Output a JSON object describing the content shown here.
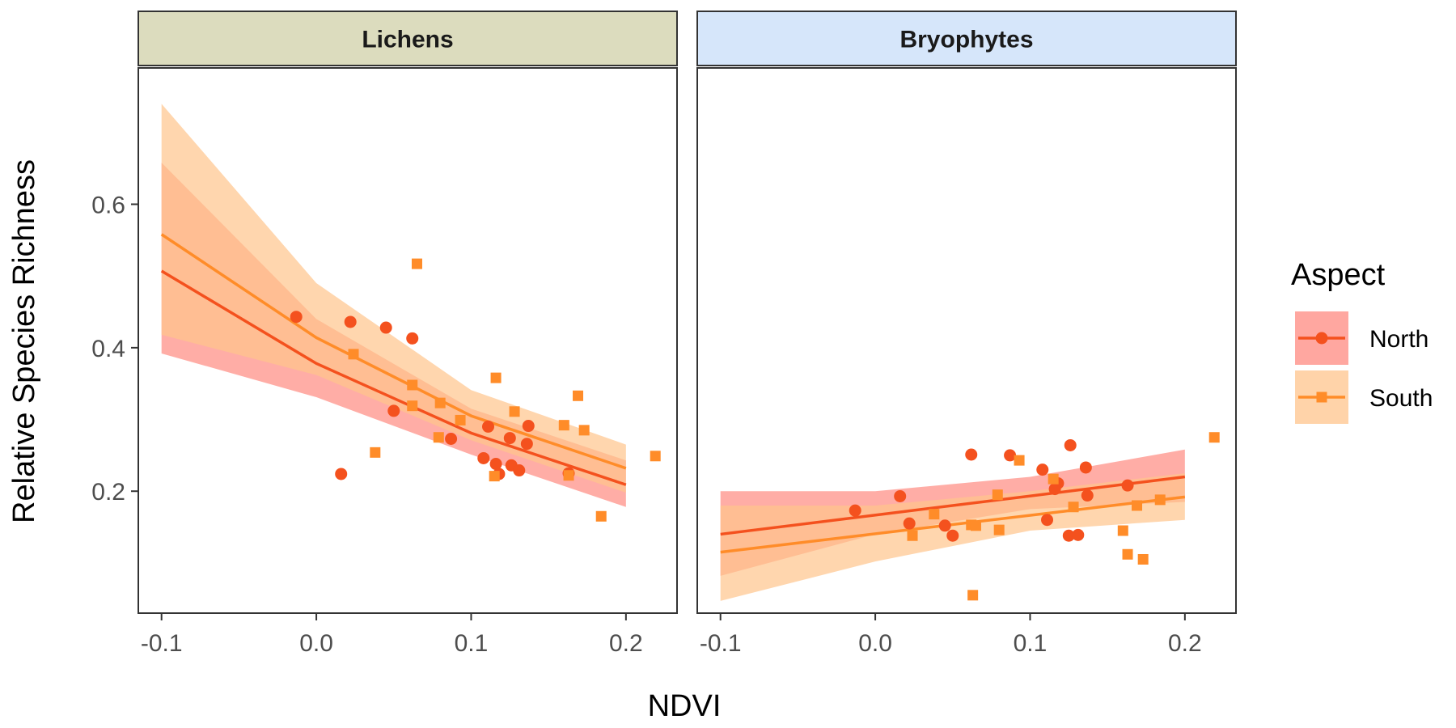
{
  "chart_data": {
    "type": "scatter",
    "xlabel": "NDVI",
    "ylabel": "Relative Species Richness",
    "xlim": [
      -0.115,
      0.233
    ],
    "ylim": [
      0.03,
      0.79
    ],
    "x_ticks": [
      -0.1,
      0.0,
      0.1,
      0.2
    ],
    "x_tick_labels": [
      "-0.1",
      "0.0",
      "0.1",
      "0.2"
    ],
    "y_ticks": [
      0.2,
      0.4,
      0.6
    ],
    "y_tick_labels": [
      "0.2",
      "0.4",
      "0.6"
    ],
    "grid": false,
    "legend": {
      "title": "Aspect",
      "position": "right",
      "entries": [
        {
          "name": "North",
          "line_color": "#F4511E",
          "band_color": "#FF8A80",
          "marker": "circle"
        },
        {
          "name": "South",
          "line_color": "#FF8C29",
          "band_color": "#FFC48C",
          "marker": "square"
        }
      ]
    },
    "panels": [
      {
        "title": "Lichens",
        "strip_color": "#DCDCBE",
        "series": [
          {
            "name": "North",
            "points": [
              [
                -0.013,
                0.443
              ],
              [
                0.016,
                0.224
              ],
              [
                0.022,
                0.436
              ],
              [
                0.045,
                0.428
              ],
              [
                0.05,
                0.312
              ],
              [
                0.062,
                0.413
              ],
              [
                0.087,
                0.273
              ],
              [
                0.108,
                0.246
              ],
              [
                0.111,
                0.29
              ],
              [
                0.116,
                0.238
              ],
              [
                0.118,
                0.224
              ],
              [
                0.125,
                0.274
              ],
              [
                0.126,
                0.236
              ],
              [
                0.131,
                0.229
              ],
              [
                0.136,
                0.266
              ],
              [
                0.137,
                0.291
              ],
              [
                0.163,
                0.225
              ]
            ],
            "fit": [
              [
                -0.1,
                0.507
              ],
              [
                0.0,
                0.378
              ],
              [
                0.1,
                0.281
              ],
              [
                0.2,
                0.209
              ]
            ],
            "band_lower": [
              [
                -0.1,
                0.392
              ],
              [
                0.0,
                0.331
              ],
              [
                0.1,
                0.251
              ],
              [
                0.2,
                0.178
              ]
            ],
            "band_upper": [
              [
                -0.1,
                0.658
              ],
              [
                0.0,
                0.44
              ],
              [
                0.1,
                0.315
              ],
              [
                0.2,
                0.243
              ]
            ]
          },
          {
            "name": "South",
            "points": [
              [
                0.024,
                0.391
              ],
              [
                0.038,
                0.254
              ],
              [
                0.062,
                0.348
              ],
              [
                0.062,
                0.319
              ],
              [
                0.065,
                0.517
              ],
              [
                0.079,
                0.275
              ],
              [
                0.08,
                0.323
              ],
              [
                0.093,
                0.299
              ],
              [
                0.115,
                0.221
              ],
              [
                0.116,
                0.358
              ],
              [
                0.128,
                0.311
              ],
              [
                0.16,
                0.292
              ],
              [
                0.163,
                0.222
              ],
              [
                0.169,
                0.333
              ],
              [
                0.173,
                0.285
              ],
              [
                0.184,
                0.165
              ],
              [
                0.219,
                0.249
              ]
            ],
            "fit": [
              [
                -0.1,
                0.558
              ],
              [
                0.0,
                0.414
              ],
              [
                0.1,
                0.305
              ],
              [
                0.2,
                0.232
              ]
            ],
            "band_lower": [
              [
                -0.1,
                0.418
              ],
              [
                0.0,
                0.362
              ],
              [
                0.1,
                0.271
              ],
              [
                0.2,
                0.198
              ]
            ],
            "band_upper": [
              [
                -0.1,
                0.74
              ],
              [
                0.0,
                0.49
              ],
              [
                0.1,
                0.341
              ],
              [
                0.2,
                0.265
              ]
            ]
          }
        ]
      },
      {
        "title": "Bryophytes",
        "strip_color": "#D6E6FA",
        "series": [
          {
            "name": "North",
            "points": [
              [
                -0.013,
                0.173
              ],
              [
                0.016,
                0.193
              ],
              [
                0.022,
                0.155
              ],
              [
                0.045,
                0.152
              ],
              [
                0.05,
                0.138
              ],
              [
                0.062,
                0.251
              ],
              [
                0.087,
                0.25
              ],
              [
                0.108,
                0.23
              ],
              [
                0.111,
                0.16
              ],
              [
                0.116,
                0.203
              ],
              [
                0.118,
                0.211
              ],
              [
                0.125,
                0.138
              ],
              [
                0.126,
                0.264
              ],
              [
                0.131,
                0.139
              ],
              [
                0.136,
                0.233
              ],
              [
                0.137,
                0.194
              ],
              [
                0.163,
                0.208
              ]
            ],
            "fit": [
              [
                -0.1,
                0.14
              ],
              [
                0.2,
                0.22
              ]
            ],
            "band_lower": [
              [
                -0.1,
                0.082
              ],
              [
                0.0,
                0.14
              ],
              [
                0.1,
                0.175
              ],
              [
                0.2,
                0.185
              ]
            ],
            "band_upper": [
              [
                -0.1,
                0.2
              ],
              [
                0.0,
                0.2
              ],
              [
                0.1,
                0.22
              ],
              [
                0.2,
                0.258
              ]
            ]
          },
          {
            "name": "South",
            "points": [
              [
                0.024,
                0.138
              ],
              [
                0.038,
                0.168
              ],
              [
                0.062,
                0.153
              ],
              [
                0.063,
                0.055
              ],
              [
                0.065,
                0.152
              ],
              [
                0.079,
                0.195
              ],
              [
                0.08,
                0.146
              ],
              [
                0.093,
                0.243
              ],
              [
                0.115,
                0.217
              ],
              [
                0.128,
                0.178
              ],
              [
                0.16,
                0.145
              ],
              [
                0.163,
                0.112
              ],
              [
                0.169,
                0.18
              ],
              [
                0.173,
                0.105
              ],
              [
                0.184,
                0.188
              ],
              [
                0.219,
                0.275
              ]
            ],
            "fit": [
              [
                -0.1,
                0.115
              ],
              [
                0.2,
                0.192
              ]
            ],
            "band_lower": [
              [
                -0.1,
                0.047
              ],
              [
                0.0,
                0.102
              ],
              [
                0.1,
                0.145
              ],
              [
                0.2,
                0.16
              ]
            ],
            "band_upper": [
              [
                -0.1,
                0.18
              ],
              [
                0.0,
                0.18
              ],
              [
                0.1,
                0.2
              ],
              [
                0.2,
                0.225
              ]
            ]
          }
        ]
      }
    ]
  }
}
